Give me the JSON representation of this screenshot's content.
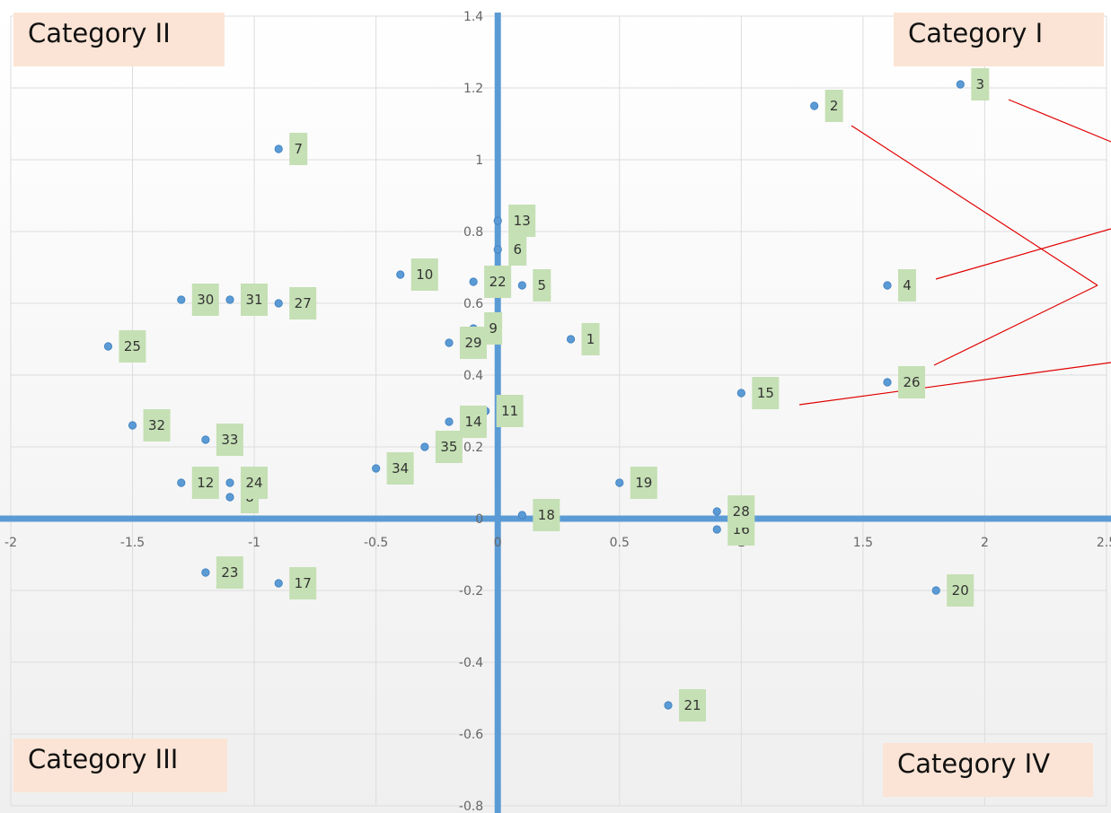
{
  "chart_data": {
    "type": "scatter",
    "xlim": [
      -2,
      2.5
    ],
    "ylim": [
      -0.8,
      1.4
    ],
    "x_ticks": [
      "-2",
      "-1.5",
      "-1",
      "-0.5",
      "0",
      "0.5",
      "1",
      "1.5",
      "2",
      "2.5"
    ],
    "y_ticks": [
      "-0.8",
      "-0.6",
      "-0.4",
      "-0.2",
      "0",
      "0.2",
      "0.4",
      "0.6",
      "0.8",
      "1",
      "1.2",
      "1.4"
    ],
    "grid": true,
    "colors": {
      "marker": "#5b9bd5",
      "axis": "#5b9bd5",
      "label_bg": "#c5e0b4",
      "quadrant_bg": "#fbe4d5",
      "arrow": "#e00000"
    },
    "points": [
      {
        "label": "1",
        "x": 0.3,
        "y": 0.5
      },
      {
        "label": "2",
        "x": 1.3,
        "y": 1.15
      },
      {
        "label": "3",
        "x": 1.9,
        "y": 1.21
      },
      {
        "label": "4",
        "x": 1.6,
        "y": 0.65
      },
      {
        "label": "5",
        "x": 0.1,
        "y": 0.65
      },
      {
        "label": "6",
        "x": 0.0,
        "y": 0.75
      },
      {
        "label": "7",
        "x": -0.9,
        "y": 1.03
      },
      {
        "label": "8",
        "x": -1.1,
        "y": 0.06
      },
      {
        "label": "9",
        "x": -0.1,
        "y": 0.53
      },
      {
        "label": "10",
        "x": -0.4,
        "y": 0.68
      },
      {
        "label": "11",
        "x": -0.05,
        "y": 0.3
      },
      {
        "label": "12",
        "x": -1.3,
        "y": 0.1
      },
      {
        "label": "13",
        "x": 0.0,
        "y": 0.83
      },
      {
        "label": "14",
        "x": -0.2,
        "y": 0.27
      },
      {
        "label": "15",
        "x": 1.0,
        "y": 0.35
      },
      {
        "label": "16",
        "x": 0.9,
        "y": -0.03
      },
      {
        "label": "17",
        "x": -0.9,
        "y": -0.18
      },
      {
        "label": "18",
        "x": 0.1,
        "y": 0.01
      },
      {
        "label": "19",
        "x": 0.5,
        "y": 0.1
      },
      {
        "label": "20",
        "x": 1.8,
        "y": -0.2
      },
      {
        "label": "21",
        "x": 0.7,
        "y": -0.52
      },
      {
        "label": "22",
        "x": -0.1,
        "y": 0.66
      },
      {
        "label": "23",
        "x": -1.2,
        "y": -0.15
      },
      {
        "label": "24",
        "x": -1.1,
        "y": 0.1
      },
      {
        "label": "25",
        "x": -1.6,
        "y": 0.48
      },
      {
        "label": "26",
        "x": 1.6,
        "y": 0.38
      },
      {
        "label": "27",
        "x": -0.9,
        "y": 0.6
      },
      {
        "label": "28",
        "x": 0.9,
        "y": 0.02
      },
      {
        "label": "29",
        "x": -0.2,
        "y": 0.49
      },
      {
        "label": "30",
        "x": -1.3,
        "y": 0.61
      },
      {
        "label": "31",
        "x": -1.1,
        "y": 0.61
      },
      {
        "label": "32",
        "x": -1.5,
        "y": 0.26
      },
      {
        "label": "33",
        "x": -1.2,
        "y": 0.22
      },
      {
        "label": "34",
        "x": -0.5,
        "y": 0.14
      },
      {
        "label": "35",
        "x": -0.3,
        "y": 0.2
      }
    ],
    "annotations": [
      "Category I",
      "Category II",
      "Category III",
      "Category IV"
    ]
  },
  "quadrants": {
    "q1": "Category I",
    "q2": "Category II",
    "q3": "Category III",
    "q4": "Category IV"
  }
}
